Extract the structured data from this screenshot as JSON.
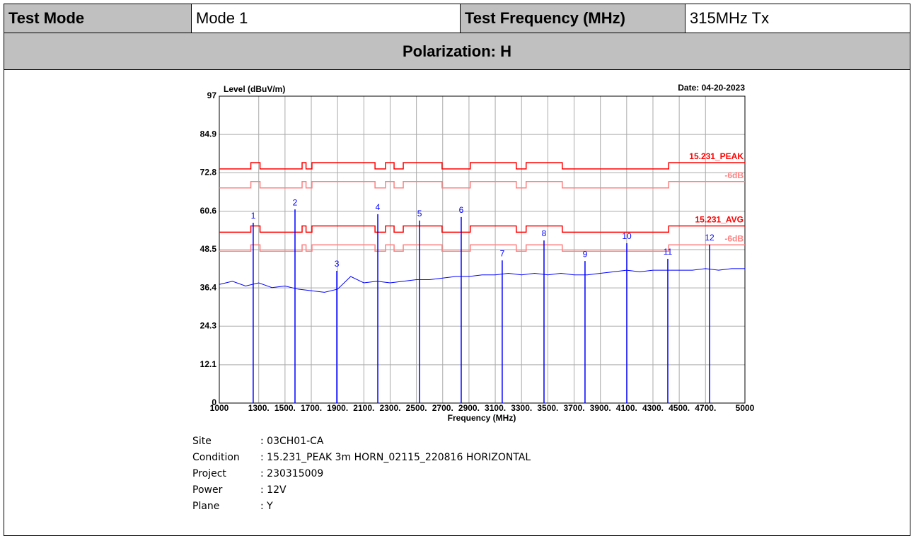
{
  "table": {
    "cells": [
      "Test Mode",
      "Mode 1",
      "Test Frequency (MHz)",
      "315MHz Tx"
    ],
    "section": "Polarization: H"
  },
  "chart_data": {
    "type": "line",
    "ylabel": "Level (dBuV/m)",
    "date": "Date: 04-20-2023",
    "xlabel": "Frequency (MHz)",
    "xlim": [
      1000,
      5000
    ],
    "ylim": [
      0,
      97
    ],
    "xticks": [
      1000,
      {
        "value": 1300,
        "label": "1300."
      },
      {
        "value": 1500,
        "label": "1500."
      },
      {
        "value": 1700,
        "label": "1700."
      },
      {
        "value": 1900,
        "label": "1900."
      },
      {
        "value": 2100,
        "label": "2100."
      },
      {
        "value": 2300,
        "label": "2300."
      },
      {
        "value": 2500,
        "label": "2500."
      },
      {
        "value": 2700,
        "label": "2700."
      },
      {
        "value": 2900,
        "label": "2900."
      },
      {
        "value": 3100,
        "label": "3100."
      },
      {
        "value": 3300,
        "label": "3300."
      },
      {
        "value": 3500,
        "label": "3500."
      },
      {
        "value": 3700,
        "label": "3700."
      },
      {
        "value": 3900,
        "label": "3900."
      },
      {
        "value": 4100,
        "label": "4100."
      },
      {
        "value": 4300,
        "label": "4300."
      },
      {
        "value": 4500,
        "label": "4500."
      },
      {
        "value": 4700,
        "label": "4700."
      },
      5000
    ],
    "yticks": [
      0,
      12.1,
      24.3,
      36.4,
      48.5,
      60.6,
      72.8,
      84.9,
      97
    ],
    "grid": true,
    "series": [
      {
        "name": "15.231_PEAK",
        "color": "#ff0000",
        "x": [
          1000,
          1240,
          1240,
          1310,
          1310,
          1630,
          1630,
          1660,
          1660,
          1705,
          1705,
          2185,
          2185,
          2265,
          2265,
          2330,
          2330,
          2400,
          2400,
          2695,
          2695,
          2910,
          2910,
          3260,
          3260,
          3335,
          3335,
          3610,
          3610,
          4420,
          4420,
          5000
        ],
        "values": [
          74,
          74,
          76,
          76,
          74,
          74,
          76,
          76,
          74,
          74,
          76,
          76,
          74,
          74,
          76,
          76,
          74,
          74,
          76,
          76,
          74,
          74,
          76,
          76,
          74,
          74,
          76,
          76,
          74,
          74,
          76,
          76
        ]
      },
      {
        "name": "-6dB",
        "color": "#ff8080",
        "x": [
          1000,
          1240,
          1240,
          1310,
          1310,
          1630,
          1630,
          1660,
          1660,
          1705,
          1705,
          2185,
          2185,
          2265,
          2265,
          2330,
          2330,
          2400,
          2400,
          2695,
          2695,
          2910,
          2910,
          3260,
          3260,
          3335,
          3335,
          3610,
          3610,
          4420,
          4420,
          5000
        ],
        "values": [
          68,
          68,
          70,
          70,
          68,
          68,
          70,
          70,
          68,
          68,
          70,
          70,
          68,
          68,
          70,
          70,
          68,
          68,
          70,
          70,
          68,
          68,
          70,
          70,
          68,
          68,
          70,
          70,
          68,
          68,
          70,
          70
        ]
      },
      {
        "name": "15.231_AVG",
        "color": "#ff0000",
        "x": [
          1000,
          1240,
          1240,
          1310,
          1310,
          1630,
          1630,
          1660,
          1660,
          1705,
          1705,
          2185,
          2185,
          2265,
          2265,
          2330,
          2330,
          2400,
          2400,
          2695,
          2695,
          2910,
          2910,
          3260,
          3260,
          3335,
          3335,
          3610,
          3610,
          4420,
          4420,
          5000
        ],
        "values": [
          54,
          54,
          56,
          56,
          54,
          54,
          56,
          56,
          54,
          54,
          56,
          56,
          54,
          54,
          56,
          56,
          54,
          54,
          56,
          56,
          54,
          54,
          56,
          56,
          54,
          54,
          56,
          56,
          54,
          54,
          56,
          56
        ]
      },
      {
        "name": "-6dB",
        "color": "#ff8080",
        "x": [
          1000,
          1240,
          1240,
          1310,
          1310,
          1630,
          1630,
          1660,
          1660,
          1705,
          1705,
          2185,
          2185,
          2265,
          2265,
          2330,
          2330,
          2400,
          2400,
          2695,
          2695,
          2910,
          2910,
          3260,
          3260,
          3335,
          3335,
          3610,
          3610,
          4420,
          4420,
          5000
        ],
        "values": [
          48,
          48,
          50,
          50,
          48,
          48,
          50,
          50,
          48,
          48,
          50,
          50,
          48,
          48,
          50,
          50,
          48,
          48,
          50,
          50,
          48,
          48,
          50,
          50,
          48,
          48,
          50,
          50,
          48,
          48,
          50,
          50
        ]
      },
      {
        "color": "#0000ff",
        "x": [
          1000,
          1100,
          1200,
          1300,
          1400,
          1500,
          1600,
          1700,
          1800,
          1900,
          2000,
          2100,
          2200,
          2300,
          2400,
          2500,
          2600,
          2700,
          2800,
          2900,
          3000,
          3100,
          3200,
          3300,
          3400,
          3500,
          3600,
          3700,
          3800,
          3900,
          4000,
          4100,
          4200,
          4300,
          4400,
          4500,
          4600,
          4700,
          4800,
          4900,
          5000
        ],
        "values": [
          37.5,
          38.5,
          37,
          38,
          36.5,
          37,
          36,
          35.5,
          35,
          36,
          40,
          38,
          38.5,
          38,
          38.5,
          39,
          39,
          39.5,
          40,
          40,
          40.5,
          40.5,
          41,
          40.5,
          41,
          40.5,
          41,
          40.5,
          40.5,
          41,
          41.5,
          42,
          41.5,
          42,
          42,
          42,
          42,
          42.5,
          42,
          42.5,
          42.5
        ]
      }
    ],
    "markers": {
      "color": "#0000ff",
      "labels": [
        "1",
        "2",
        "3",
        "4",
        "5",
        "6",
        "7",
        "8",
        "9",
        "10",
        "11",
        "12"
      ],
      "x": [
        1258,
        1576,
        1894,
        2206,
        2524,
        2841,
        3153,
        3471,
        3783,
        4101,
        4413,
        4731
      ],
      "values": [
        57.0,
        61.2,
        41.8,
        59.7,
        57.7,
        58.8,
        45.1,
        51.4,
        44.9,
        50.5,
        45.6,
        50.1
      ]
    }
  },
  "info": [
    {
      "label": "Site",
      "value": ": 03CH01-CA"
    },
    {
      "label": "Condition",
      "value": ": 15.231_PEAK 3m HORN_02115_220816 HORIZONTAL"
    },
    {
      "label": "Project",
      "value": ": 230315009"
    },
    {
      "label": "Power",
      "value": ": 12V"
    },
    {
      "label": "Plane",
      "value": ": Y"
    }
  ]
}
